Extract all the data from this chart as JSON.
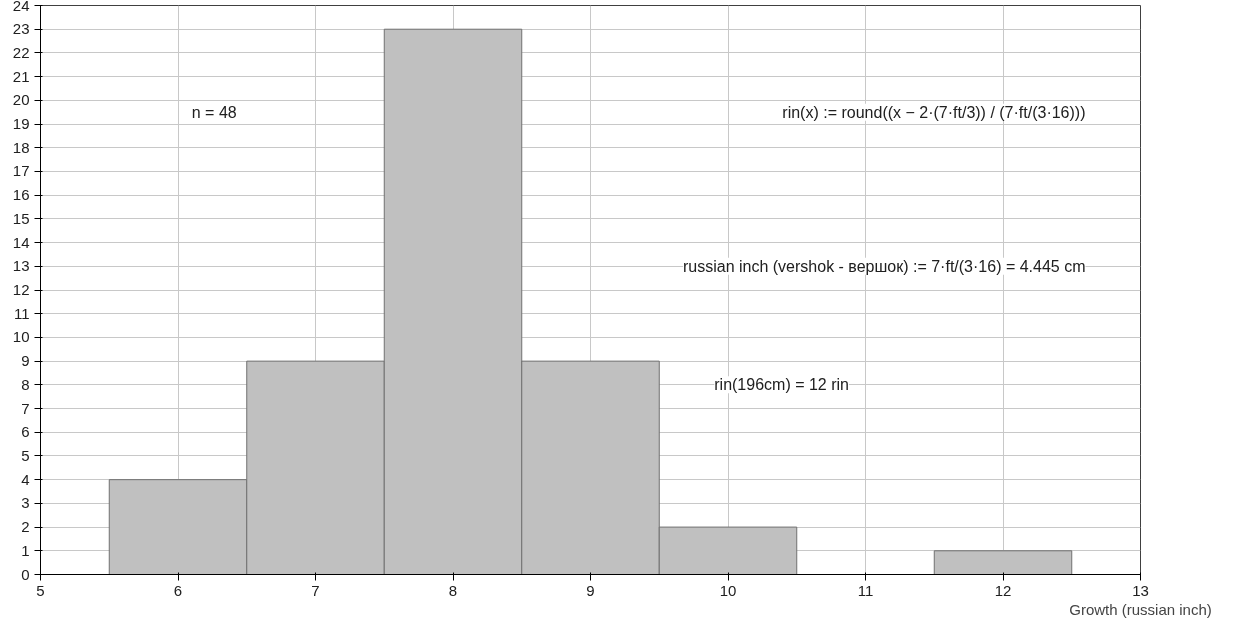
{
  "chart_data": {
    "type": "histogram",
    "bins": [
      5.5,
      6.5,
      7.5,
      8.5,
      9.5,
      10.5,
      11.5,
      12.5
    ],
    "values": [
      4,
      9,
      23,
      9,
      2,
      0,
      1
    ],
    "color": "#c0c0c0",
    "xlabel": "Growth (russian inch)",
    "xlim": [
      5,
      13
    ],
    "xticks": [
      5,
      6,
      7,
      8,
      9,
      10,
      11,
      12,
      13
    ],
    "ylim": [
      0,
      24
    ],
    "yticks": [
      0,
      1,
      2,
      3,
      4,
      5,
      6,
      7,
      8,
      9,
      10,
      11,
      12,
      13,
      14,
      15,
      16,
      17,
      18,
      19,
      20,
      21,
      22,
      23,
      24
    ],
    "grid": true,
    "annotations": [
      "n = 48",
      "rin(x) := round((x − 2·(7·ft/3)) / (7·ft/(3·16)))",
      "russian inch (vershok - вершок) := 7·ft/(3·16) = 4.445 cm",
      "rin(196cm) = 12 rin"
    ]
  }
}
